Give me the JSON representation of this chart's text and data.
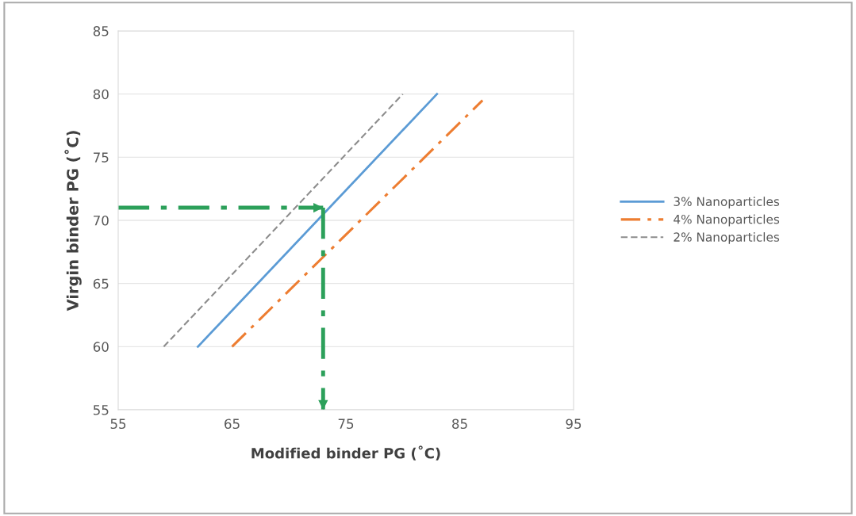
{
  "chart_data": {
    "type": "line",
    "xlabel": "Modified binder PG (˚C)",
    "ylabel": "Virgin binder PG (˚C)",
    "xlim": [
      55,
      95
    ],
    "xticks": [
      55,
      65,
      75,
      85,
      95
    ],
    "ylim": [
      55,
      85
    ],
    "yticks": [
      55,
      60,
      65,
      70,
      75,
      80,
      85
    ],
    "grid": "y",
    "legend": "right",
    "series": [
      {
        "name": "3% Nanoparticles",
        "color": "#5b9bd5",
        "x": [
          62,
          83
        ],
        "values": [
          60,
          80
        ],
        "line_style": "solid"
      },
      {
        "name": "4% Nanoparticles",
        "color": "#ed7d31",
        "x": [
          65,
          87
        ],
        "values": [
          60,
          79.5
        ],
        "line_style": "dashdot"
      },
      {
        "name": "2% Nanoparticles",
        "color": "#8c8c8c",
        "x": [
          59,
          80
        ],
        "values": [
          60,
          80
        ],
        "line_style": "dashed"
      },
      {
        "color": "#2ca05a",
        "x": [
          55,
          73
        ],
        "values": [
          71,
          71
        ],
        "line_style": "dashdot"
      },
      {
        "color": "#2ca05a",
        "x": [
          73,
          73
        ],
        "values": [
          71,
          55
        ],
        "line_style": "dashdot"
      }
    ]
  }
}
